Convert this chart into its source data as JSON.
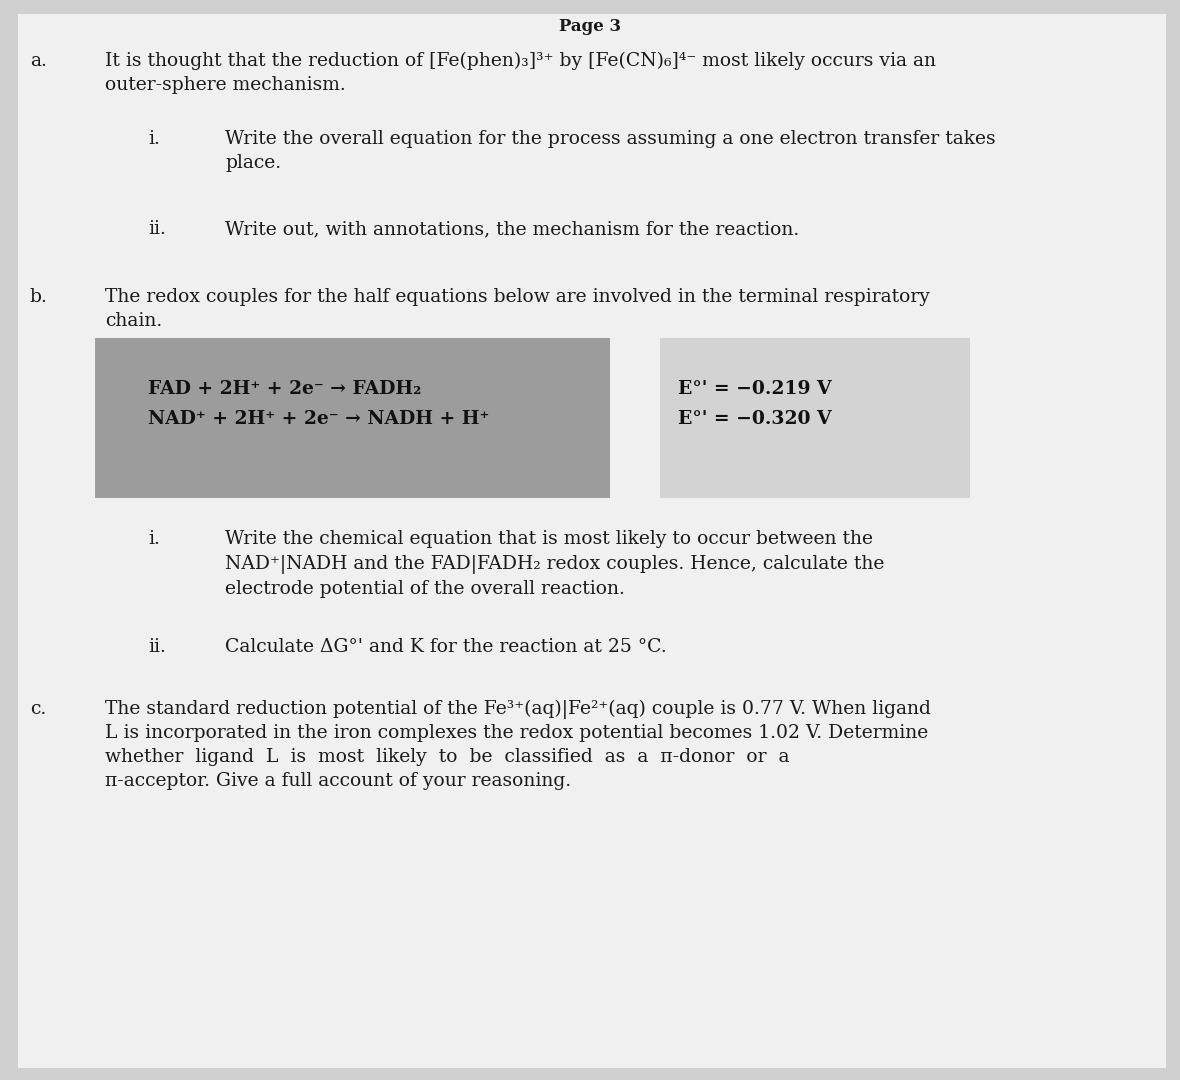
{
  "bg_color": "#d0d0d0",
  "page_bg": "#f0f0f0",
  "text_color": "#1a1a1a",
  "eq_text_color": "#111111",
  "shadow_left_color": "#878787",
  "shadow_right_color": "#c8c8c8",
  "title": "Page 3",
  "section_a_label": "a.",
  "section_b_label": "b.",
  "section_c_label": "c.",
  "sub_i": "i.",
  "sub_ii": "ii.",
  "section_a_text1": "It is thought that the reduction of [Fe(phen)₃]³⁺ by [Fe(CN)₆]⁴⁻ most likely occurs via an",
  "section_a_text2": "outer-sphere mechanism.",
  "section_a_i_text1": "Write the overall equation for the process assuming a one electron transfer takes",
  "section_a_i_text2": "place.",
  "section_a_ii_text": "Write out, with annotations, the mechanism for the reaction.",
  "section_b_text1": "The redox couples for the half equations below are involved in the terminal respiratory",
  "section_b_text2": "chain.",
  "eq1_left": "FAD + 2H⁺ + 2e⁻ → FADH₂",
  "eq1_right": "E°' = −0.219 V",
  "eq2_left": "NAD⁺ + 2H⁺ + 2e⁻ → NADH + H⁺",
  "eq2_right": "E°' = −0.320 V",
  "section_b_i_text1": "Write the chemical equation that is most likely to occur between the",
  "section_b_i_text2": "NAD⁺|NADH and the FAD|FADH₂ redox couples. Hence, calculate the",
  "section_b_i_text3": "electrode potential of the overall reaction.",
  "section_b_ii_text": "Calculate ΔG°' and K for the reaction at 25 °C.",
  "section_c_text1": "The standard reduction potential of the Fe³⁺(aq)|Fe²⁺(aq) couple is 0.77 V. When ligand",
  "section_c_text2": "L is incorporated in the iron complexes the redox potential becomes 1.02 V. Determine",
  "section_c_text3": "whether  ligand  L  is  most  likely  to  be  classified  as  a  π-donor  or  a",
  "section_c_text4": "π-acceptor. Give a full account of your reasoning."
}
